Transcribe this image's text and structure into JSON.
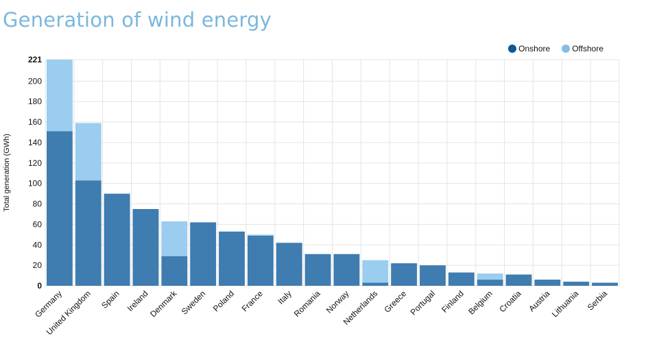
{
  "colors": {
    "title": "#7bb7dd",
    "onshore": "#3f7caf",
    "offshore": "#9acdef",
    "legend_onshore": "#0d5898",
    "legend_offshore": "#86bde6"
  },
  "chart_data": {
    "type": "bar",
    "stacked": true,
    "title": "Generation of wind energy",
    "xlabel": "",
    "ylabel": "Total generation (GWh)",
    "ylim": [
      0,
      221
    ],
    "yticks": [
      0,
      20,
      40,
      60,
      80,
      100,
      120,
      140,
      160,
      180,
      200,
      221
    ],
    "grid": true,
    "legend_position": "top-right",
    "categories": [
      "Germany",
      "United Kingdom",
      "Spain",
      "Ireland",
      "Denmark",
      "Sweden",
      "Poland",
      "France",
      "Italy",
      "Romania",
      "Norway",
      "Netherlands",
      "Greece",
      "Portugal",
      "Finland",
      "Belgium",
      "Croatia",
      "Austria",
      "Lithuania",
      "Serbia"
    ],
    "series": [
      {
        "name": "Onshore",
        "values": [
          151,
          103,
          90,
          75,
          29,
          62,
          53,
          49,
          42,
          31,
          31,
          3,
          22,
          20,
          13,
          6,
          11,
          6,
          4,
          3
        ]
      },
      {
        "name": "Offshore",
        "values": [
          70,
          56,
          0,
          0,
          34,
          0,
          0,
          1,
          0,
          0,
          0,
          22,
          0,
          0,
          0,
          6,
          0,
          0,
          0,
          0
        ]
      }
    ]
  }
}
